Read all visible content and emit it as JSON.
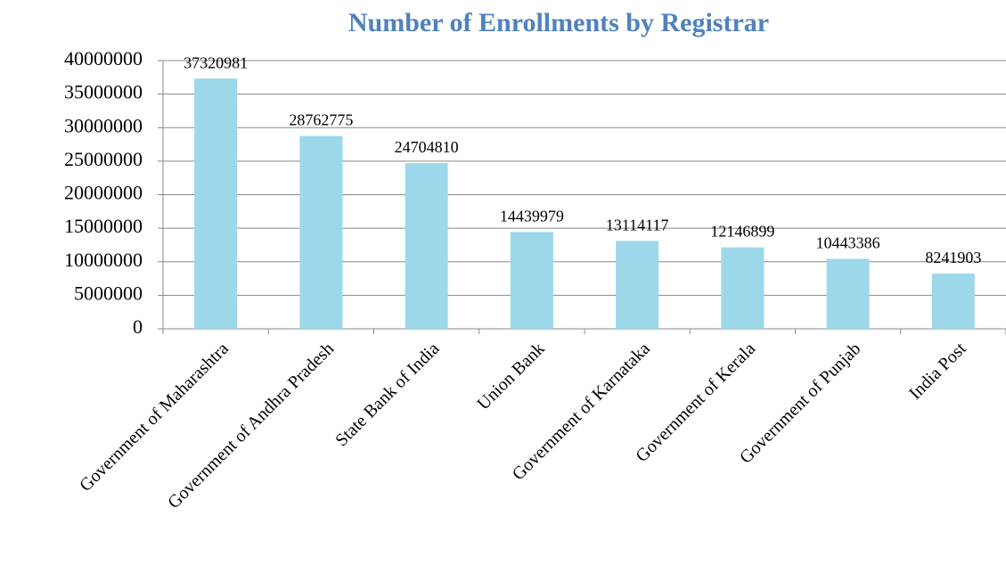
{
  "chart_data": {
    "type": "bar",
    "title": "Number  of Enrollments  by Registrar",
    "categories": [
      "Government of Maharashtra",
      "Government of Andhra Pradesh",
      "State Bank of India",
      "Union Bank",
      "Government of Karnataka",
      "Government of Kerala",
      "Government of Punjab",
      "India Post"
    ],
    "values": [
      37320981,
      28762775,
      24704810,
      14439979,
      13114117,
      12146899,
      10443386,
      8241903
    ],
    "color": "#9dd8ea",
    "ylim": [
      0,
      40000000
    ],
    "yticks": [
      0,
      5000000,
      10000000,
      15000000,
      20000000,
      25000000,
      30000000,
      35000000,
      40000000
    ],
    "grid": true
  }
}
